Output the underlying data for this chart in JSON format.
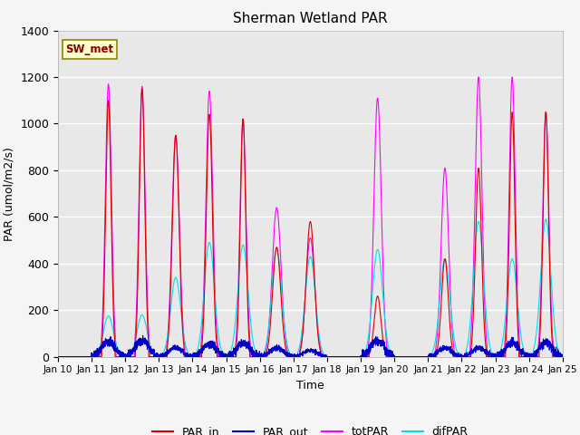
{
  "title": "Sherman Wetland PAR",
  "xlabel": "Time",
  "ylabel": "PAR (umol/m2/s)",
  "ylim": [
    0,
    1400
  ],
  "background_color": "#e8e8e8",
  "plot_bg_color": "#e8e8e8",
  "grid_color": "white",
  "colors": {
    "PAR_in": "#dd0000",
    "PAR_out": "#0000cc",
    "totPAR": "#ff00ff",
    "difPAR": "#00ddee"
  },
  "legend_label": "SW_met",
  "legend_box_color": "#ffffcc",
  "legend_box_edge": "#888800",
  "legend_text_color": "#880000",
  "tick_labels": [
    "Jan 10",
    "Jan 11",
    "Jan 12",
    "Jan 13",
    "Jan 14",
    "Jan 15",
    "Jan 16",
    "Jan 17",
    "Jan 18",
    "Jan 19",
    "Jan 20",
    "Jan 21",
    "Jan 22",
    "Jan 23",
    "Jan 24",
    "Jan 25"
  ],
  "day_peaks": {
    "PAR_in": [
      0,
      1100,
      1150,
      950,
      1040,
      1020,
      470,
      580,
      0,
      260,
      0,
      420,
      810,
      1050,
      1050,
      0
    ],
    "PAR_out": [
      0,
      60,
      65,
      35,
      50,
      55,
      35,
      25,
      0,
      65,
      0,
      35,
      35,
      55,
      55,
      0
    ],
    "totPAR": [
      0,
      1170,
      1160,
      950,
      1140,
      1020,
      640,
      510,
      0,
      1110,
      0,
      810,
      1200,
      1200,
      1050,
      0
    ],
    "difPAR": [
      0,
      175,
      180,
      340,
      490,
      480,
      460,
      430,
      0,
      460,
      0,
      420,
      580,
      420,
      590,
      0
    ]
  },
  "day_widths": {
    "PAR_in": [
      0,
      0.08,
      0.08,
      0.1,
      0.09,
      0.08,
      0.12,
      0.12,
      0,
      0.1,
      0,
      0.1,
      0.09,
      0.08,
      0.08,
      0
    ],
    "PAR_out": [
      0,
      0.2,
      0.2,
      0.2,
      0.2,
      0.2,
      0.2,
      0.2,
      0,
      0.2,
      0,
      0.2,
      0.2,
      0.2,
      0.2,
      0
    ],
    "totPAR": [
      0,
      0.09,
      0.09,
      0.11,
      0.1,
      0.09,
      0.13,
      0.13,
      0,
      0.11,
      0,
      0.11,
      0.1,
      0.09,
      0.09,
      0
    ],
    "difPAR": [
      0,
      0.15,
      0.15,
      0.15,
      0.15,
      0.15,
      0.15,
      0.15,
      0,
      0.15,
      0,
      0.15,
      0.15,
      0.15,
      0.15,
      0
    ]
  }
}
